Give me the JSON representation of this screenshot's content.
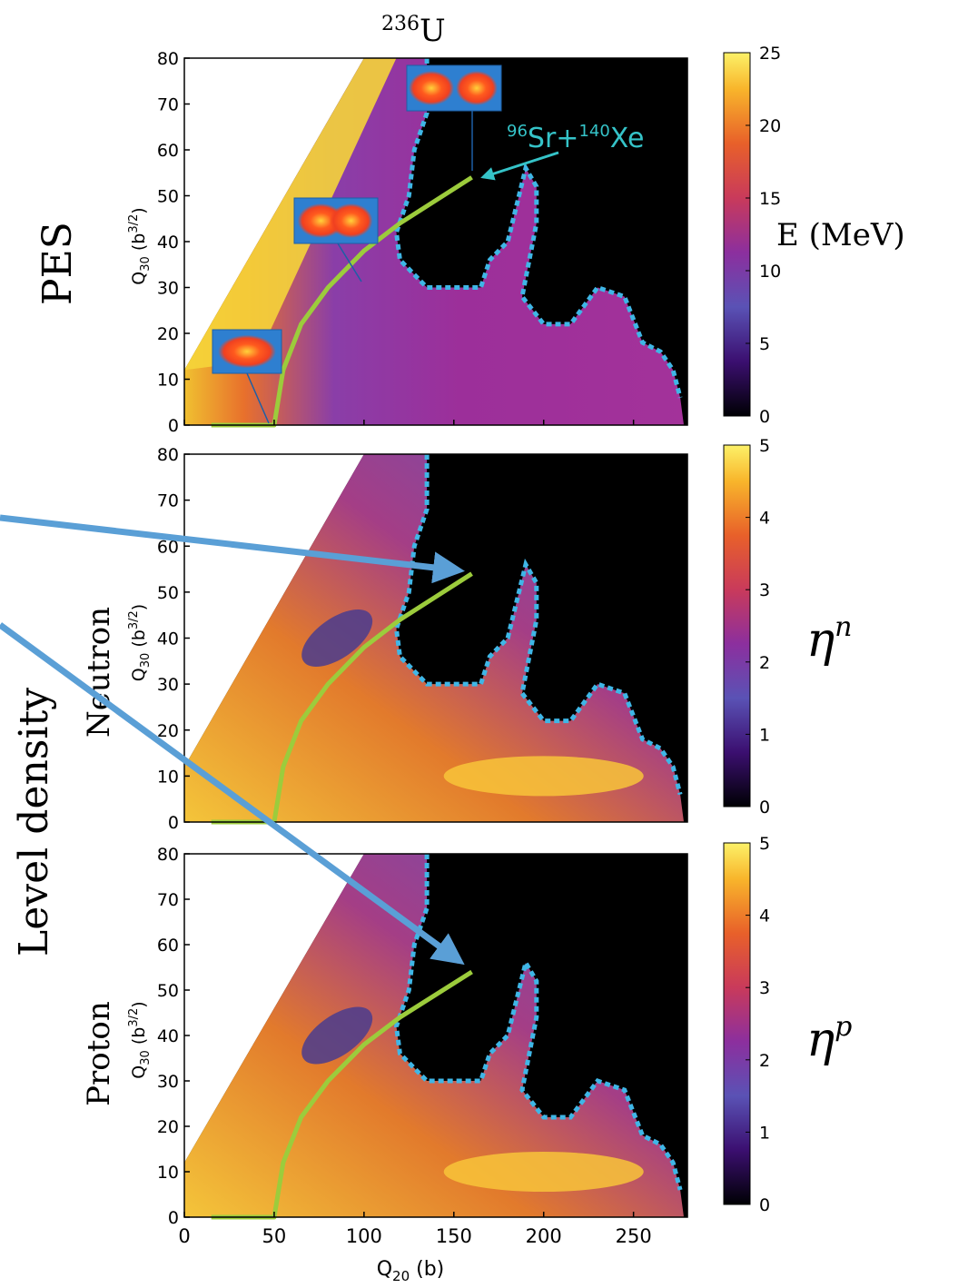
{
  "title": {
    "mass": "236",
    "element": "U"
  },
  "labels": {
    "pes": "PES",
    "level_density": "Level density",
    "neutron": "Neutron",
    "proton": "Proton"
  },
  "fragments_annotation": {
    "a1": "96",
    "e1": "Sr",
    "plus": "+",
    "a2": "140",
    "e2": "Xe"
  },
  "colors": {
    "path": "#9ccc3c",
    "annotation": "#35c3c8",
    "arrow": "#5a9fd6",
    "boundary": "#3fb6e6"
  },
  "chart_data": [
    {
      "type": "heatmap",
      "name": "PES",
      "xlabel": "Q20 (b)",
      "ylabel": "Q30 (b3/2)",
      "xlim": [
        0,
        280
      ],
      "ylim": [
        0,
        80
      ],
      "yticks": [
        0,
        10,
        20,
        30,
        40,
        50,
        60,
        70,
        80
      ],
      "xticks": [
        0,
        50,
        100,
        150,
        200,
        250
      ],
      "colorbar": {
        "label": "E (MeV)",
        "min": 0,
        "max": 25,
        "ticks": [
          0,
          5,
          10,
          15,
          20,
          25
        ]
      },
      "path": [
        [
          15,
          0
        ],
        [
          50,
          0
        ],
        [
          55,
          12
        ],
        [
          65,
          22
        ],
        [
          80,
          30
        ],
        [
          100,
          38
        ],
        [
          120,
          44
        ],
        [
          140,
          49
        ],
        [
          160,
          54
        ]
      ]
    },
    {
      "type": "heatmap",
      "name": "Neutron",
      "xlabel": "Q20 (b)",
      "ylabel": "Q30 (b3/2)",
      "xlim": [
        0,
        280
      ],
      "ylim": [
        0,
        80
      ],
      "yticks": [
        0,
        10,
        20,
        30,
        40,
        50,
        60,
        70,
        80
      ],
      "colorbar": {
        "label": "ηn",
        "sym": "η",
        "sup": "n",
        "min": 0,
        "max": 5,
        "ticks": [
          0,
          1,
          2,
          3,
          4,
          5
        ]
      },
      "path": [
        [
          15,
          0
        ],
        [
          50,
          0
        ],
        [
          55,
          12
        ],
        [
          65,
          22
        ],
        [
          80,
          30
        ],
        [
          100,
          38
        ],
        [
          120,
          44
        ],
        [
          140,
          49
        ],
        [
          160,
          54
        ]
      ]
    },
    {
      "type": "heatmap",
      "name": "Proton",
      "xlabel": "Q20 (b)",
      "ylabel": "Q30 (b3/2)",
      "xlim": [
        0,
        280
      ],
      "ylim": [
        0,
        80
      ],
      "yticks": [
        0,
        10,
        20,
        30,
        40,
        50,
        60,
        70,
        80
      ],
      "xticks": [
        0,
        50,
        100,
        150,
        200,
        250
      ],
      "colorbar": {
        "label": "ηp",
        "sym": "η",
        "sup": "p",
        "min": 0,
        "max": 5,
        "ticks": [
          0,
          1,
          2,
          3,
          4,
          5
        ]
      },
      "path": [
        [
          15,
          0
        ],
        [
          50,
          0
        ],
        [
          55,
          12
        ],
        [
          65,
          22
        ],
        [
          80,
          30
        ],
        [
          100,
          38
        ],
        [
          120,
          44
        ],
        [
          140,
          49
        ],
        [
          160,
          54
        ]
      ]
    }
  ]
}
